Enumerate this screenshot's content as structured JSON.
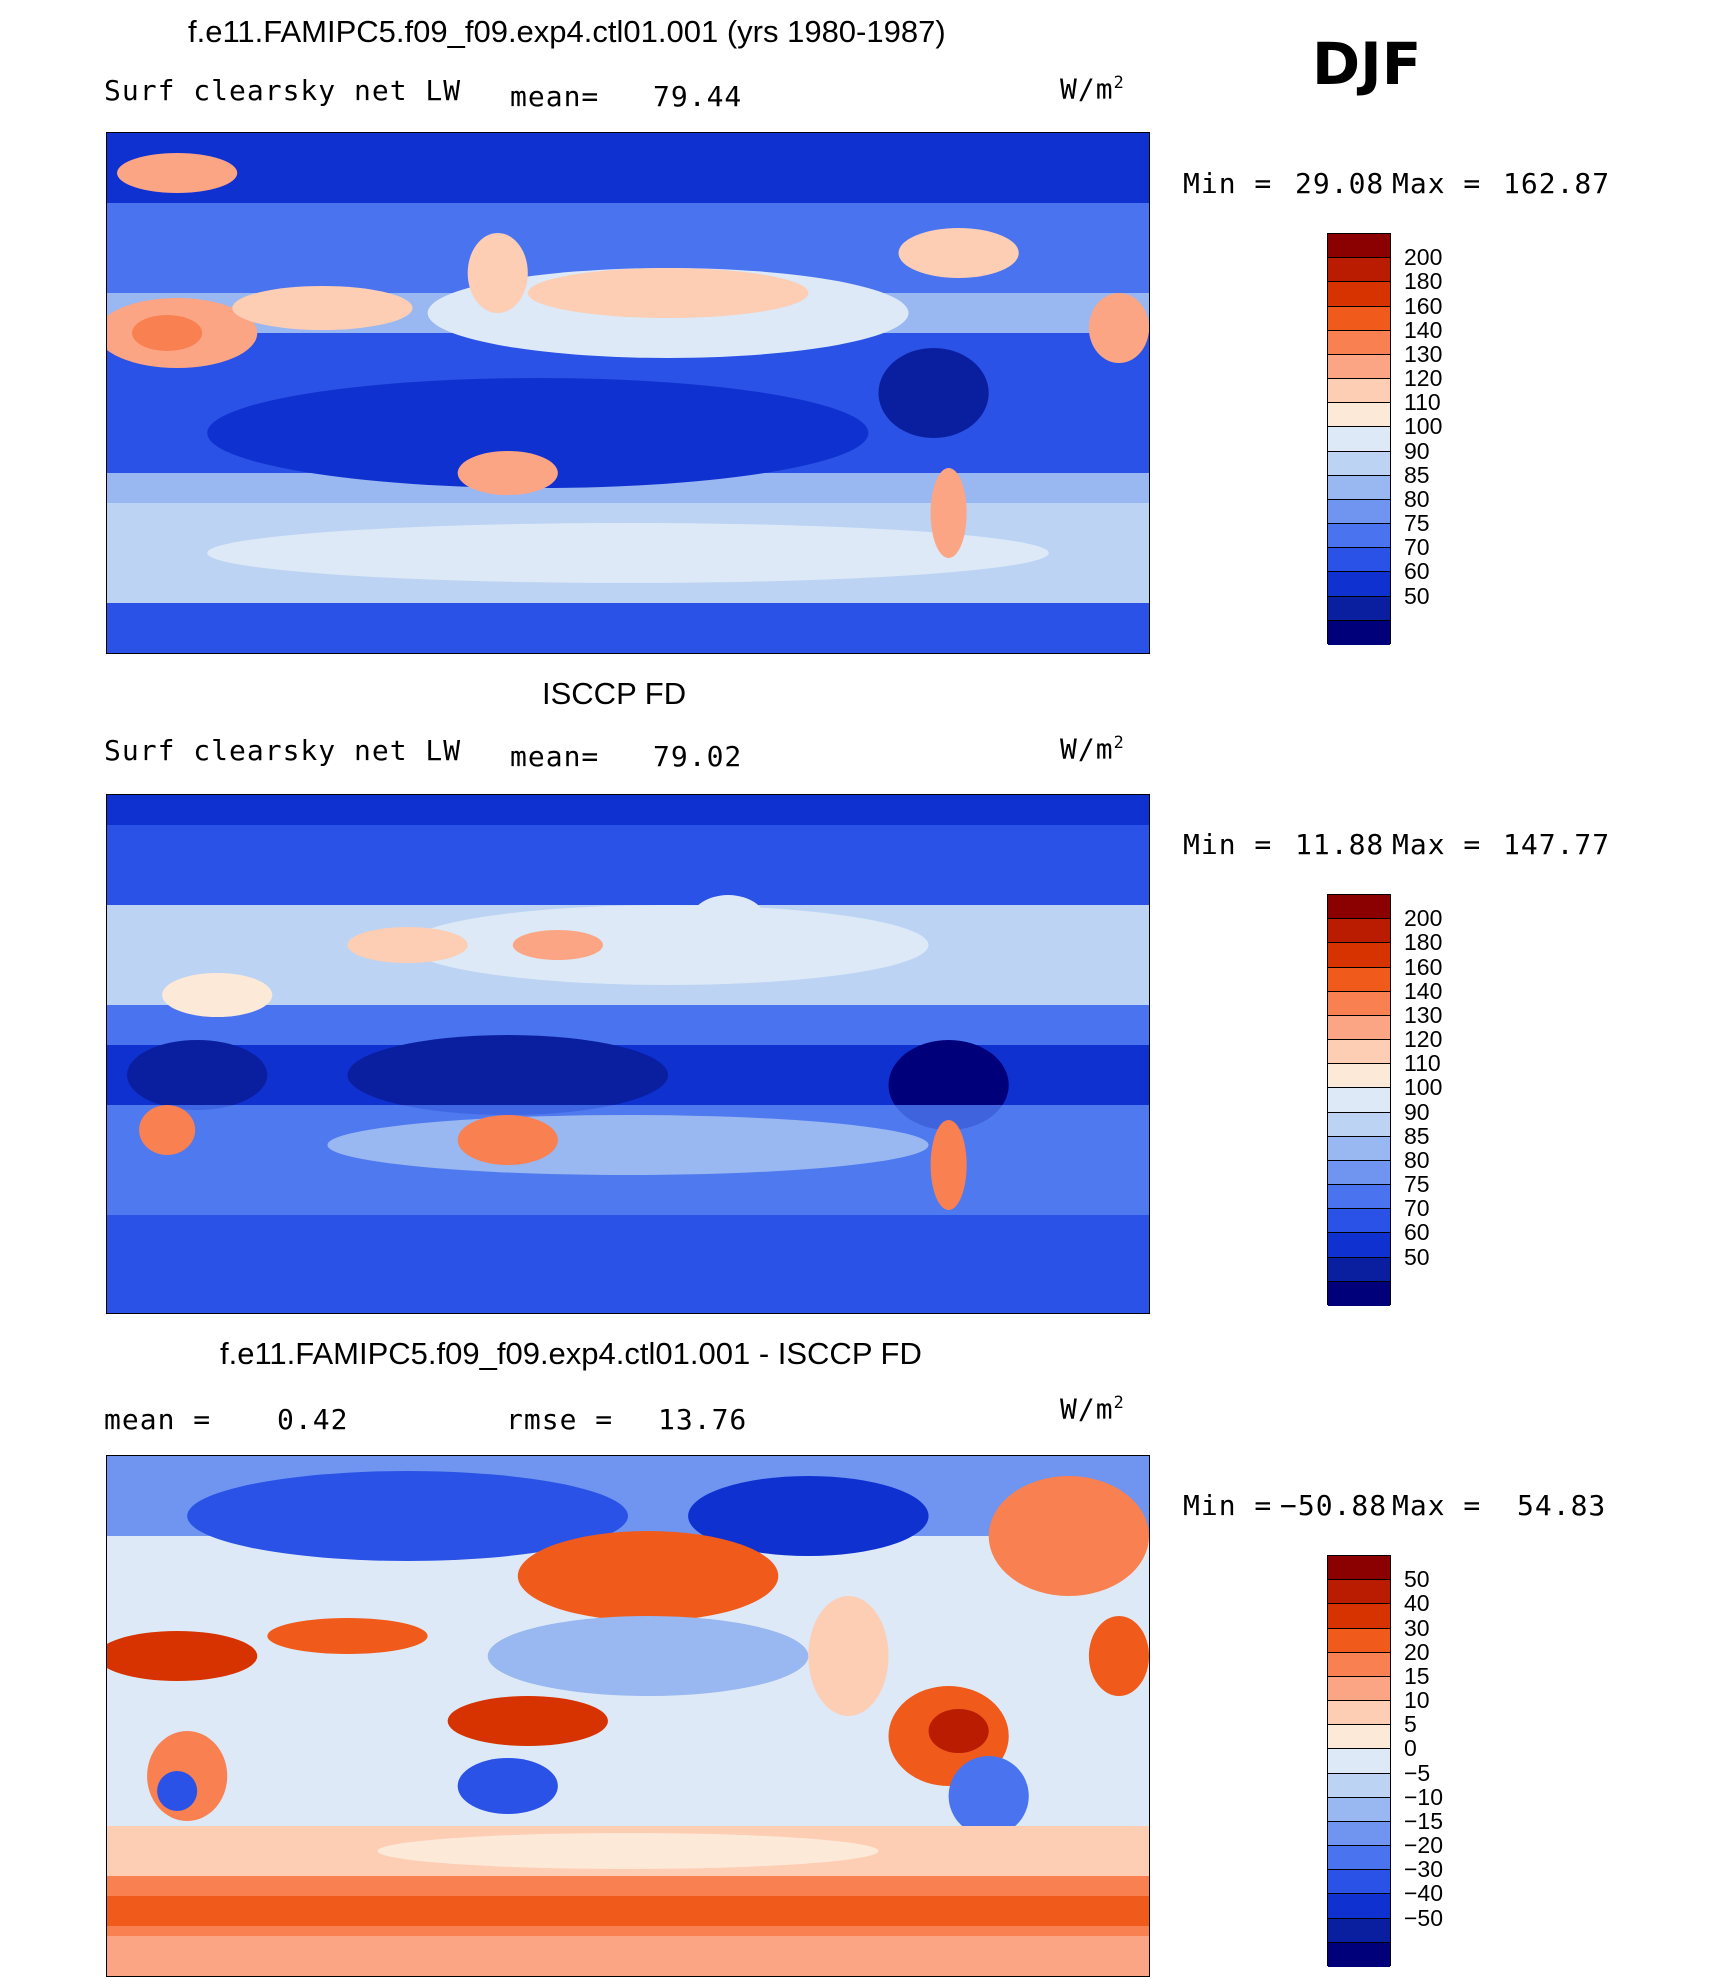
{
  "season": "DJF",
  "palette_abs": [
    "#8b0000",
    "#b91c00",
    "#d63300",
    "#f05a1a",
    "#f98050",
    "#fca585",
    "#fdcdb4",
    "#fde9d8",
    "#dde9f6",
    "#bcd3f3",
    "#99b7f0",
    "#6f95f0",
    "#4a74ef",
    "#2a52e6",
    "#0f31d0",
    "#0a1fa0",
    "#00007a"
  ],
  "palette_diff": [
    "#8b0000",
    "#b91c00",
    "#d63300",
    "#f05a1a",
    "#f98050",
    "#fca585",
    "#fdcdb4",
    "#fde9d8",
    "#dde9f6",
    "#bcd3f3",
    "#99b7f0",
    "#6f95f0",
    "#4a74ef",
    "#2a52e6",
    "#0f31d0",
    "#0a1fa0",
    "#00007a"
  ],
  "panels": [
    {
      "title": "f.e11.FAMIPC5.f09_f09.exp4.ctl01.001 (yrs 1980-1987)",
      "variable": "Surf clearsky net LW",
      "stat_label": "mean=",
      "stat_value": "79.44",
      "units": "W/m",
      "units_exp": "2",
      "minmax_label": "Min =",
      "min": "29.08",
      "max_label": "Max =",
      "max": "162.87",
      "levels": [
        "200",
        "180",
        "160",
        "140",
        "130",
        "120",
        "110",
        "100",
        "90",
        "85",
        "80",
        "75",
        "70",
        "60",
        "50"
      ]
    },
    {
      "title": "ISCCP FD",
      "variable": "Surf clearsky net LW",
      "stat_label": "mean=",
      "stat_value": "79.02",
      "units": "W/m",
      "units_exp": "2",
      "minmax_label": "Min =",
      "min": "11.88",
      "max_label": "Max =",
      "max": "147.77",
      "levels": [
        "200",
        "180",
        "160",
        "140",
        "130",
        "120",
        "110",
        "100",
        "90",
        "85",
        "80",
        "75",
        "70",
        "60",
        "50"
      ]
    },
    {
      "title": "f.e11.FAMIPC5.f09_f09.exp4.ctl01.001 - ISCCP FD",
      "stat_label": "mean =",
      "stat_value": "0.42",
      "rmse_label": "rmse =",
      "rmse_value": "13.76",
      "units": "W/m",
      "units_exp": "2",
      "minmax_label": "Min =",
      "min": "−50.88",
      "max_label": "Max =",
      "max": "54.83",
      "levels": [
        "50",
        "40",
        "30",
        "20",
        "15",
        "10",
        "5",
        "0",
        "−5",
        "−10",
        "−15",
        "−20",
        "−30",
        "−40",
        "−50"
      ]
    }
  ]
}
